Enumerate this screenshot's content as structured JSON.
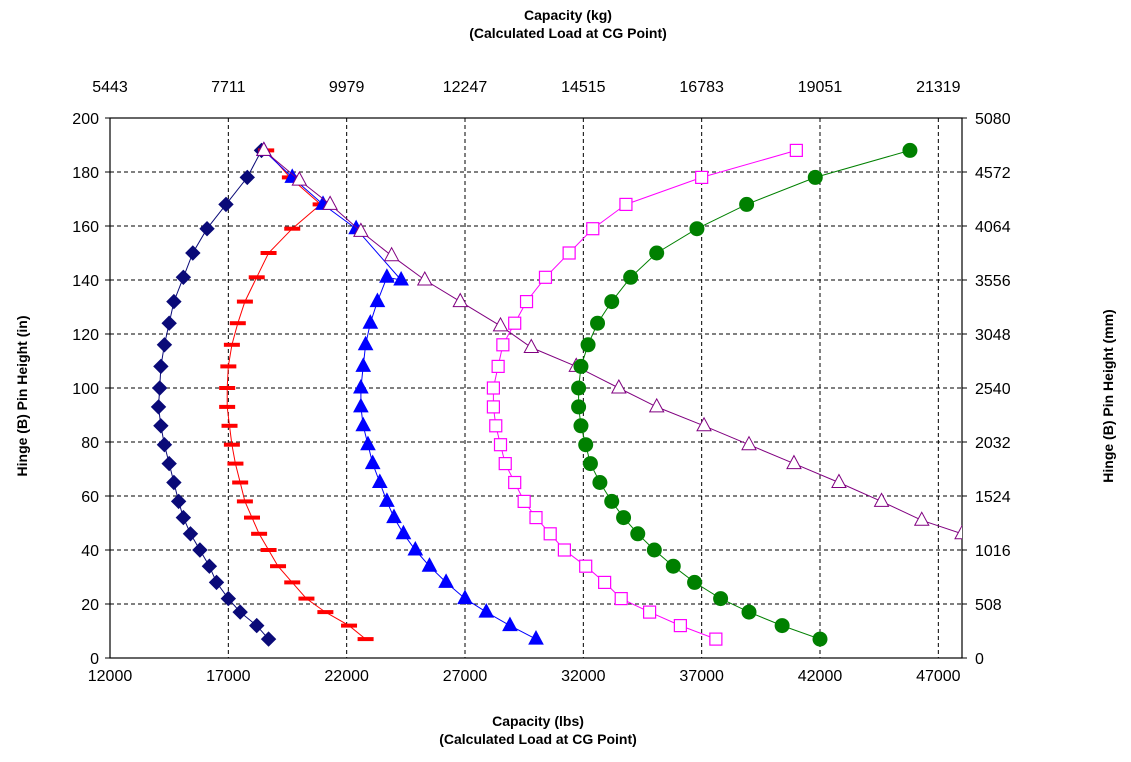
{
  "chart_data": {
    "type": "scatter",
    "x_bottom": {
      "label_line1": "Capacity (lbs)",
      "label_line2": "(Calculated Load at CG Point)",
      "range": [
        12000,
        48000
      ],
      "ticks": [
        12000,
        17000,
        22000,
        27000,
        32000,
        37000,
        42000,
        47000
      ]
    },
    "x_top": {
      "label_line1": "Capacity (kg)",
      "label_line2": "(Calculated Load at CG Point)",
      "ticks": [
        "5443",
        "7711",
        "9979",
        "12247",
        "14515",
        "16783",
        "19051",
        "21319"
      ]
    },
    "y_left": {
      "label": "Hinge (B) Pin Height (in)",
      "range": [
        0,
        200
      ],
      "ticks": [
        0,
        20,
        40,
        60,
        80,
        100,
        120,
        140,
        160,
        180,
        200
      ]
    },
    "y_right": {
      "label": "Hinge (B) Pin Height (mm)",
      "ticks": [
        "0",
        "508",
        "1016",
        "1524",
        "2032",
        "2540",
        "3048",
        "3556",
        "4064",
        "4572",
        "5080"
      ]
    },
    "grid": true,
    "series": [
      {
        "marker": "diamond",
        "color": "#0a0a78",
        "fill": true,
        "points": [
          [
            18700,
            7
          ],
          [
            18200,
            12
          ],
          [
            17500,
            17
          ],
          [
            17000,
            22
          ],
          [
            16500,
            28
          ],
          [
            16200,
            34
          ],
          [
            15800,
            40
          ],
          [
            15400,
            46
          ],
          [
            15100,
            52
          ],
          [
            14900,
            58
          ],
          [
            14700,
            65
          ],
          [
            14500,
            72
          ],
          [
            14300,
            79
          ],
          [
            14150,
            86
          ],
          [
            14050,
            93
          ],
          [
            14100,
            100
          ],
          [
            14150,
            108
          ],
          [
            14300,
            116
          ],
          [
            14500,
            124
          ],
          [
            14700,
            132
          ],
          [
            15100,
            141
          ],
          [
            15500,
            150
          ],
          [
            16100,
            159
          ],
          [
            16900,
            168
          ],
          [
            17800,
            178
          ],
          [
            18400,
            188
          ]
        ]
      },
      {
        "marker": "dash",
        "color": "#ff0000",
        "fill": true,
        "points": [
          [
            22800,
            7
          ],
          [
            22100,
            12
          ],
          [
            21100,
            17
          ],
          [
            20300,
            22
          ],
          [
            19700,
            28
          ],
          [
            19100,
            34
          ],
          [
            18700,
            40
          ],
          [
            18300,
            46
          ],
          [
            18000,
            52
          ],
          [
            17700,
            58
          ],
          [
            17500,
            65
          ],
          [
            17300,
            72
          ],
          [
            17150,
            79
          ],
          [
            17050,
            86
          ],
          [
            16950,
            93
          ],
          [
            16950,
            100
          ],
          [
            17000,
            108
          ],
          [
            17150,
            116
          ],
          [
            17400,
            124
          ],
          [
            17700,
            132
          ],
          [
            18200,
            141
          ],
          [
            18700,
            150
          ],
          [
            19700,
            159
          ],
          [
            20900,
            168
          ],
          [
            19600,
            178
          ],
          [
            18600,
            188
          ]
        ]
      },
      {
        "marker": "triangle",
        "color": "#0000ff",
        "fill": true,
        "points": [
          [
            30000,
            7
          ],
          [
            28900,
            12
          ],
          [
            27900,
            17
          ],
          [
            27000,
            22
          ],
          [
            26200,
            28
          ],
          [
            25500,
            34
          ],
          [
            24900,
            40
          ],
          [
            24400,
            46
          ],
          [
            24000,
            52
          ],
          [
            23700,
            58
          ],
          [
            23400,
            65
          ],
          [
            23100,
            72
          ],
          [
            22900,
            79
          ],
          [
            22700,
            86
          ],
          [
            22600,
            93
          ],
          [
            22600,
            100
          ],
          [
            22700,
            108
          ],
          [
            22800,
            116
          ],
          [
            23000,
            124
          ],
          [
            23300,
            132
          ],
          [
            23700,
            141
          ],
          [
            24300,
            140
          ],
          [
            22400,
            159
          ],
          [
            21000,
            168
          ],
          [
            19700,
            178
          ],
          [
            18500,
            188
          ]
        ]
      },
      {
        "marker": "triangle",
        "color": "#800080",
        "fill": false,
        "line_through": true,
        "points": [
          [
            18500,
            188
          ],
          [
            20000,
            177
          ],
          [
            21300,
            168
          ],
          [
            22600,
            158
          ],
          [
            23900,
            149
          ],
          [
            25300,
            140
          ],
          [
            26800,
            132
          ],
          [
            28500,
            123
          ],
          [
            29800,
            115
          ],
          [
            31700,
            108
          ],
          [
            33500,
            100
          ],
          [
            35100,
            93
          ],
          [
            37100,
            86
          ],
          [
            39000,
            79
          ],
          [
            40900,
            72
          ],
          [
            42800,
            65
          ],
          [
            44600,
            58
          ],
          [
            46300,
            51
          ],
          [
            48000,
            46
          ]
        ]
      },
      {
        "marker": "square",
        "color": "#ff00ff",
        "fill": false,
        "points": [
          [
            37600,
            7
          ],
          [
            36100,
            12
          ],
          [
            34800,
            17
          ],
          [
            33600,
            22
          ],
          [
            32900,
            28
          ],
          [
            32100,
            34
          ],
          [
            31200,
            40
          ],
          [
            30600,
            46
          ],
          [
            30000,
            52
          ],
          [
            29500,
            58
          ],
          [
            29100,
            65
          ],
          [
            28700,
            72
          ],
          [
            28500,
            79
          ],
          [
            28300,
            86
          ],
          [
            28200,
            93
          ],
          [
            28200,
            100
          ],
          [
            28400,
            108
          ],
          [
            28600,
            116
          ],
          [
            29100,
            124
          ],
          [
            29600,
            132
          ],
          [
            30400,
            141
          ],
          [
            31400,
            150
          ],
          [
            32400,
            159
          ],
          [
            33800,
            168
          ],
          [
            37000,
            178
          ],
          [
            41000,
            188
          ]
        ]
      },
      {
        "marker": "circle",
        "color": "#008000",
        "fill": true,
        "points": [
          [
            42000,
            7
          ],
          [
            40400,
            12
          ],
          [
            39000,
            17
          ],
          [
            37800,
            22
          ],
          [
            36700,
            28
          ],
          [
            35800,
            34
          ],
          [
            35000,
            40
          ],
          [
            34300,
            46
          ],
          [
            33700,
            52
          ],
          [
            33200,
            58
          ],
          [
            32700,
            65
          ],
          [
            32300,
            72
          ],
          [
            32100,
            79
          ],
          [
            31900,
            86
          ],
          [
            31800,
            93
          ],
          [
            31800,
            100
          ],
          [
            31900,
            108
          ],
          [
            32200,
            116
          ],
          [
            32600,
            124
          ],
          [
            33200,
            132
          ],
          [
            34000,
            141
          ],
          [
            35100,
            150
          ],
          [
            36800,
            159
          ],
          [
            38900,
            168
          ],
          [
            41800,
            178
          ],
          [
            45800,
            188
          ]
        ]
      }
    ]
  }
}
